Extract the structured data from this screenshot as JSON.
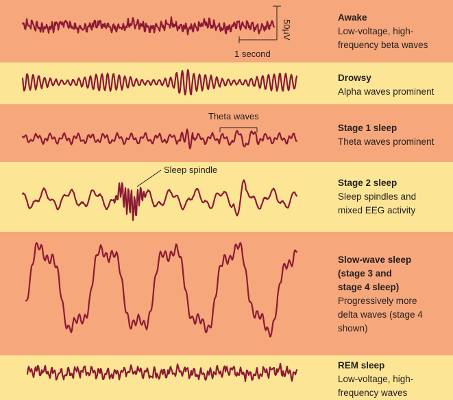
{
  "stages": [
    {
      "id": "awake",
      "title": "Awake",
      "desc_lines": [
        "Low-voltage, high-",
        "frequency beta waves"
      ],
      "color": "#f7a77c"
    },
    {
      "id": "drowsy",
      "title": "Drowsy",
      "desc_lines": [
        "Alpha waves prominent"
      ],
      "color": "#fde596"
    },
    {
      "id": "stage1",
      "title": "Stage 1 sleep",
      "desc_lines": [
        "Theta waves prominent"
      ],
      "color": "#f7a77c"
    },
    {
      "id": "stage2",
      "title": "Stage 2 sleep",
      "desc_lines": [
        "Sleep spindles and",
        "mixed EEG activity"
      ],
      "color": "#fde596"
    },
    {
      "id": "slowwave",
      "title_lines": [
        "Slow-wave sleep",
        "(stage 3 and",
        "stage 4 sleep)"
      ],
      "desc_lines": [
        "Progressively more",
        "delta waves (stage 4",
        "shown)"
      ],
      "color": "#f7a77c"
    },
    {
      "id": "rem",
      "title": "REM sleep",
      "desc_lines": [
        "Low-voltage, high-",
        "frequency waves"
      ],
      "color": "#fde596"
    }
  ],
  "annotations": {
    "scale_voltage": "50µV",
    "scale_time": "1 second",
    "theta_label": "Theta waves",
    "spindle_label": "Sleep spindle"
  },
  "colors": {
    "wave": "#8b1a35",
    "orange_band": "#f7a77c",
    "yellow_band": "#fde596",
    "text": "#231f20"
  }
}
